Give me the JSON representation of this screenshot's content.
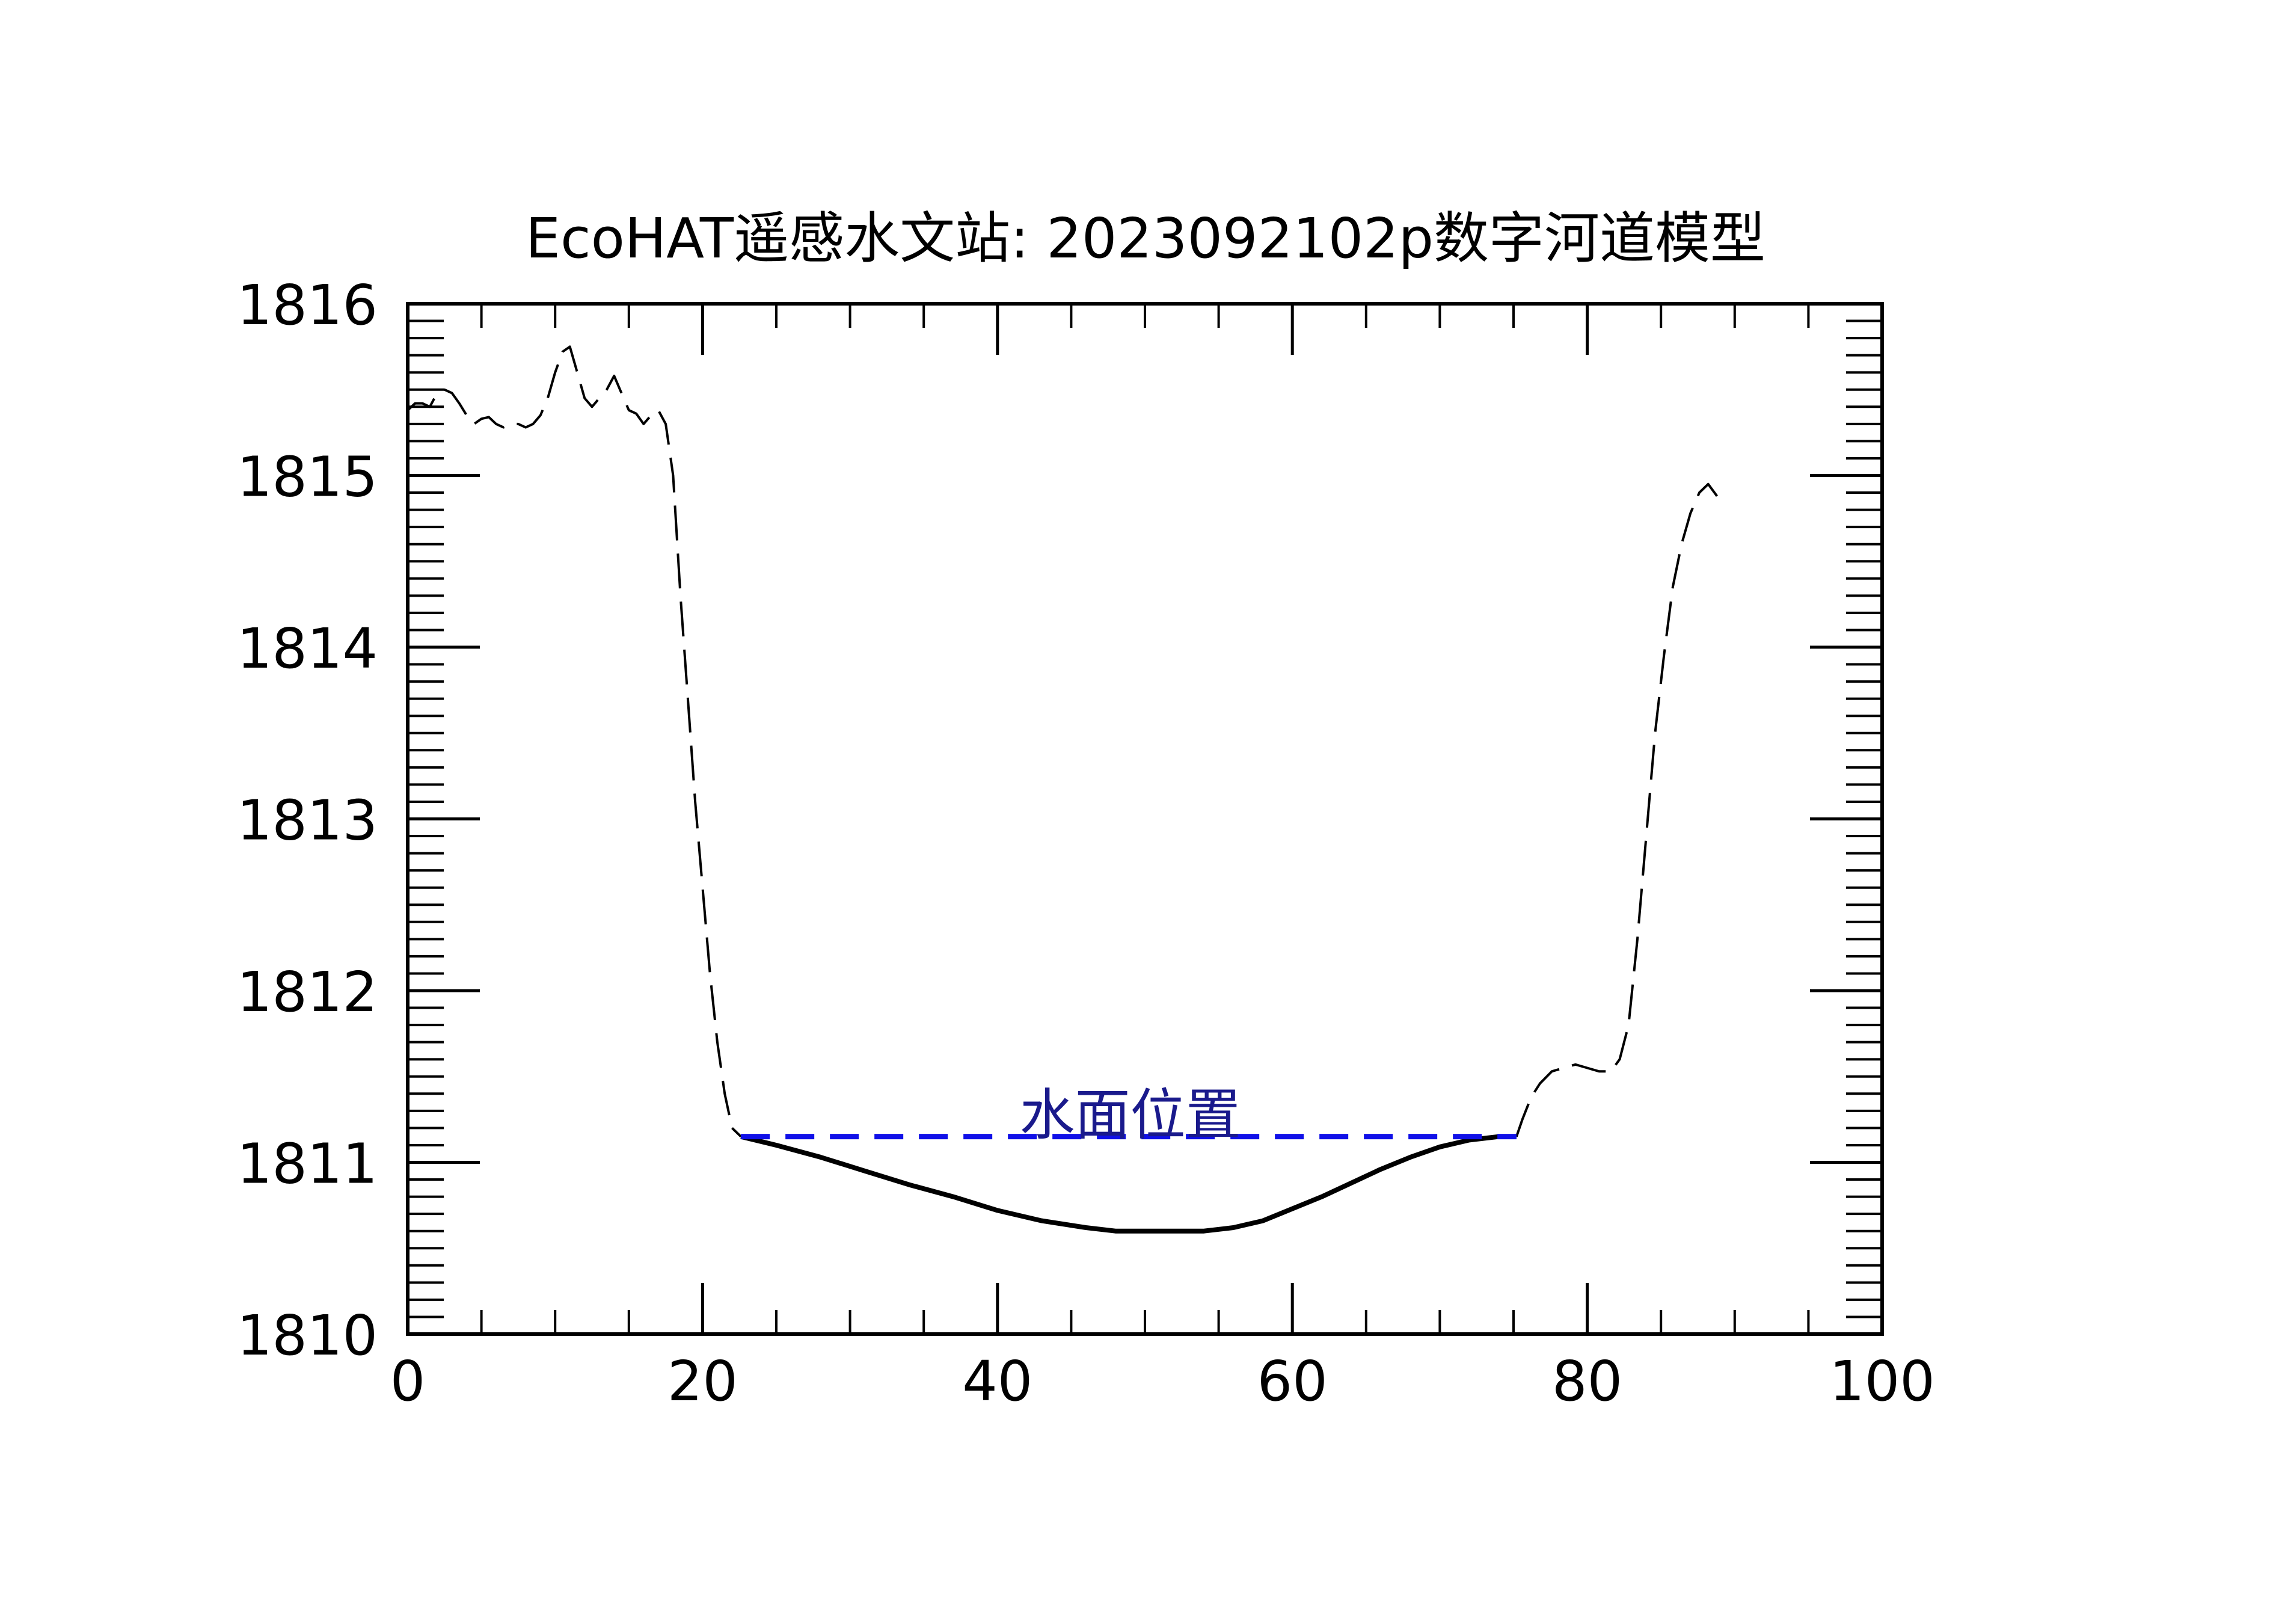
{
  "chart_data": {
    "type": "line",
    "title": "EcoHAT遥感水文站: 2023092102p数字河道模型",
    "xlabel": "",
    "ylabel": "",
    "xlim": [
      0,
      100
    ],
    "ylim": [
      1810,
      1816
    ],
    "x_ticks": [
      0,
      20,
      40,
      60,
      80,
      100
    ],
    "y_ticks": [
      1810,
      1811,
      1812,
      1813,
      1814,
      1815,
      1816
    ],
    "x_minor_step": 5,
    "y_minor_step": 0.1,
    "grid": false,
    "colors": {
      "terrain": "#000000",
      "water": "#1010e8",
      "annotation": "#1a1a8c"
    },
    "series": [
      {
        "role": "bank-left",
        "style": "dashed-thin",
        "x": [
          0,
          0.5,
          1,
          1.5,
          2,
          2.5,
          3,
          3.5,
          4,
          4.5,
          5,
          5.5,
          6,
          6.5,
          7,
          7.5,
          8,
          8.5,
          9,
          9.5,
          10,
          10.5,
          11,
          11.5,
          12,
          12.5,
          13,
          13.5,
          14,
          14.5,
          15,
          15.5,
          16,
          16.5,
          17,
          17.5,
          18,
          18.5,
          19,
          19.5,
          20,
          20.5,
          21,
          21.5,
          22,
          22.6
        ],
        "y": [
          1815.38,
          1815.42,
          1815.42,
          1815.4,
          1815.48,
          1815.5,
          1815.48,
          1815.42,
          1815.35,
          1815.3,
          1815.33,
          1815.34,
          1815.3,
          1815.28,
          1815.3,
          1815.3,
          1815.28,
          1815.3,
          1815.35,
          1815.45,
          1815.6,
          1815.72,
          1815.75,
          1815.6,
          1815.45,
          1815.4,
          1815.45,
          1815.5,
          1815.58,
          1815.48,
          1815.38,
          1815.36,
          1815.3,
          1815.35,
          1815.38,
          1815.3,
          1815.0,
          1814.3,
          1813.7,
          1813.1,
          1812.6,
          1812.1,
          1811.7,
          1811.4,
          1811.2,
          1811.15
        ]
      },
      {
        "role": "channel-bed",
        "style": "solid-thick",
        "x": [
          22.6,
          25,
          28,
          31,
          34,
          37,
          40,
          43,
          46,
          48,
          50,
          52,
          54,
          56,
          58,
          60,
          62,
          64,
          66,
          68,
          70,
          72,
          74,
          75.2
        ],
        "y": [
          1811.15,
          1811.1,
          1811.03,
          1810.95,
          1810.87,
          1810.8,
          1810.72,
          1810.66,
          1810.62,
          1810.6,
          1810.6,
          1810.6,
          1810.6,
          1810.62,
          1810.66,
          1810.73,
          1810.8,
          1810.88,
          1810.96,
          1811.03,
          1811.09,
          1811.13,
          1811.15,
          1811.15
        ]
      },
      {
        "role": "bank-right",
        "style": "dashed-thin",
        "x": [
          75.2,
          75.6,
          76.2,
          76.8,
          77.6,
          78.4,
          79.2,
          80,
          80.8,
          81.6,
          82.2,
          82.8,
          83.4,
          84,
          84.6,
          85.2,
          85.8,
          86.4,
          87,
          87.6,
          88.2,
          88.8
        ],
        "y": [
          1811.15,
          1811.25,
          1811.38,
          1811.46,
          1811.53,
          1811.55,
          1811.57,
          1811.55,
          1811.53,
          1811.53,
          1811.6,
          1811.8,
          1812.3,
          1812.9,
          1813.5,
          1813.95,
          1814.35,
          1814.6,
          1814.78,
          1814.9,
          1814.95,
          1814.88
        ]
      }
    ],
    "water_surface": {
      "y": 1811.15,
      "x_start": 22.6,
      "x_end": 75.2,
      "style": "dashed-thick",
      "label": "水面位置",
      "label_x": 49
    }
  }
}
